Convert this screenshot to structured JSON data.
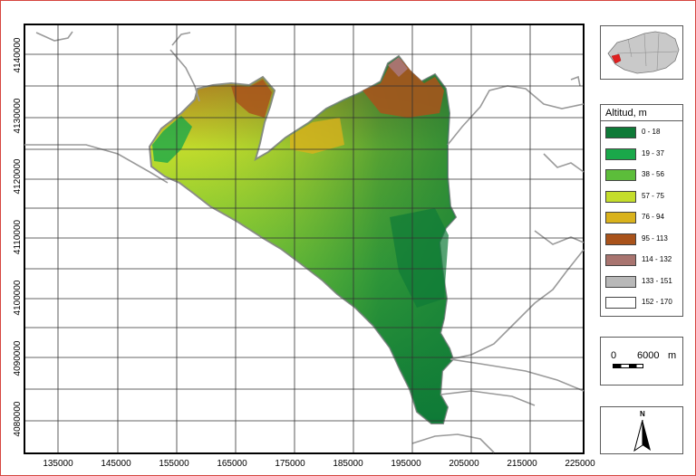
{
  "map": {
    "x_ticks": [
      "135000",
      "145000",
      "155000",
      "165000",
      "175000",
      "185000",
      "195000",
      "205000",
      "215000",
      "225000"
    ],
    "y_ticks": [
      "4080000",
      "4090000",
      "4100000",
      "4110000",
      "4120000",
      "4130000",
      "4140000"
    ]
  },
  "legend": {
    "title": "Altitud, m",
    "classes": [
      {
        "label": "0 - 18",
        "color": "#0e7a37"
      },
      {
        "label": "19 - 37",
        "color": "#1aa84a"
      },
      {
        "label": "38 - 56",
        "color": "#5cbd3a"
      },
      {
        "label": "57 - 75",
        "color": "#c4dd2b"
      },
      {
        "label": "76 - 94",
        "color": "#d9b21c"
      },
      {
        "label": "95 - 113",
        "color": "#a9531b"
      },
      {
        "label": "114 - 132",
        "color": "#a8746f"
      },
      {
        "label": "133 - 151",
        "color": "#b8b8b8"
      },
      {
        "label": "152 - 170",
        "color": "#ffffff"
      }
    ]
  },
  "scale_bar": {
    "start": "0",
    "distance": "6000",
    "unit": "m"
  },
  "north_arrow": {
    "label": "N"
  },
  "colors": {
    "frame": "#d6453f",
    "roads": "#9a9a9a",
    "grid": "#333333",
    "inset_region": "#c9c9c9",
    "inset_highlight": "#e02020"
  }
}
